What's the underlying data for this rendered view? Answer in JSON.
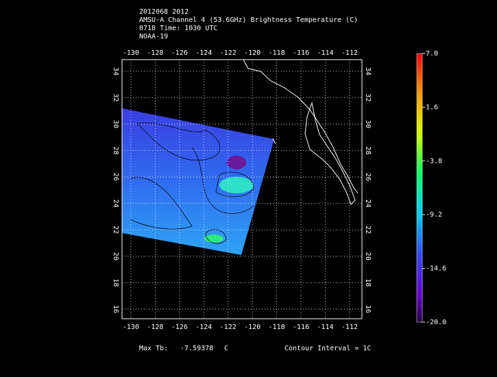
{
  "header": {
    "lines": [
      "2012068 2012",
      "AMSU-A Channel 4 (53.6GHz) Brightness Temperature (C)",
      "0718 Time: 1030 UTC",
      "NOAA-19"
    ]
  },
  "map": {
    "lon_range": [
      -130.73,
      -110.98
    ],
    "lat_range": [
      15.27,
      34.88
    ],
    "lon_ticks": [
      -130,
      -128,
      -126,
      -124,
      -122,
      -120,
      -118,
      -116,
      -114,
      -112
    ],
    "lat_ticks": [
      16,
      18,
      20,
      22,
      24,
      26,
      28,
      30,
      32,
      34
    ]
  },
  "colorbar": {
    "range": [
      -20,
      7
    ],
    "ticks": [
      {
        "value": 7,
        "label": "7.0"
      },
      {
        "value": 1.6,
        "label": "1.6"
      },
      {
        "value": -3.8,
        "label": "-3.8"
      },
      {
        "value": -9.2,
        "label": "-9.2"
      },
      {
        "value": -14.6,
        "label": "-14.6"
      },
      {
        "value": -20,
        "label": "-20.0"
      }
    ]
  },
  "footer": {
    "max_label": "Max Tb:",
    "max_value": -7.59378,
    "max_unit": "C",
    "contour_interval": "Contour Interval = 1C"
  }
}
